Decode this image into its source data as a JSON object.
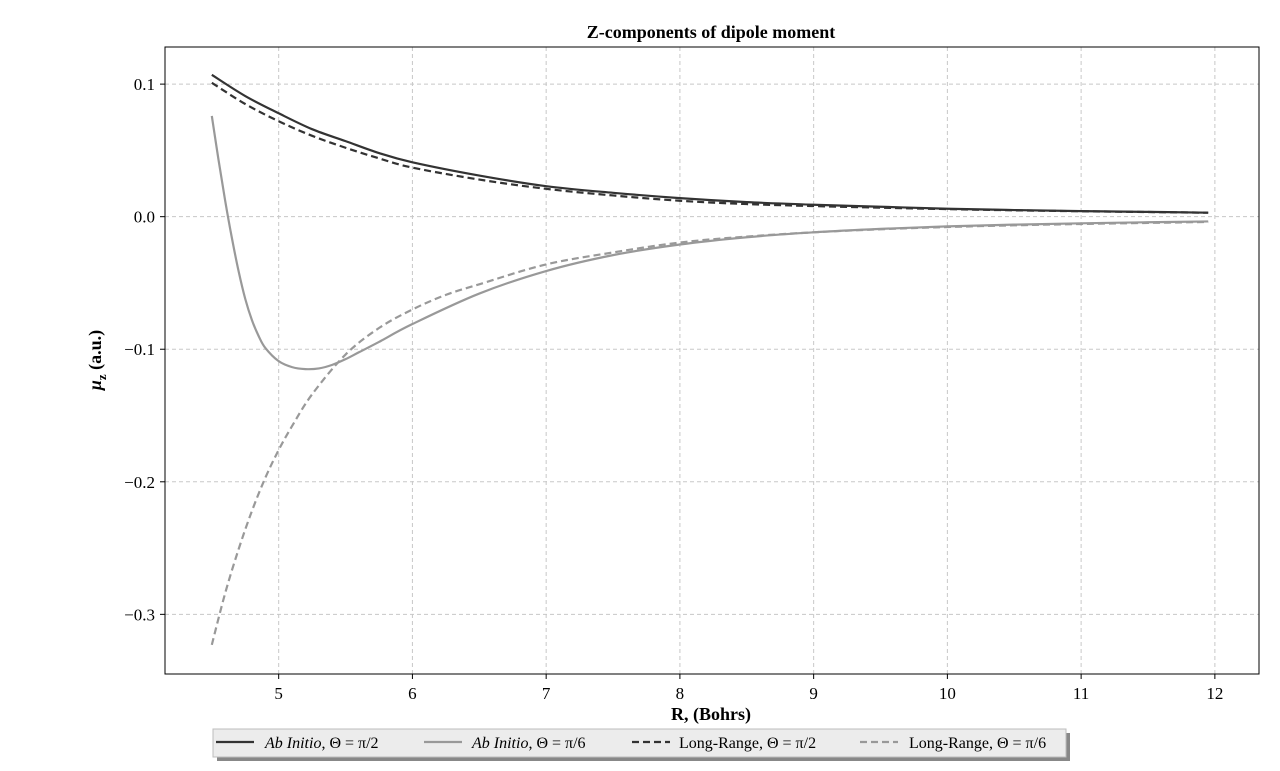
{
  "chart_data": {
    "type": "line",
    "title": "Z-components of dipole moment",
    "xlabel": "R, (Bohrs)",
    "ylabel_symbol": "μ",
    "ylabel_subscript": "z",
    "ylabel_unit": " (a.u.)",
    "xlim": [
      4.15,
      12.33
    ],
    "ylim": [
      -0.345,
      0.128
    ],
    "x_ticks": [
      5,
      6,
      7,
      8,
      9,
      10,
      11,
      12
    ],
    "y_ticks": [
      0.1,
      0.0,
      -0.1,
      -0.2,
      -0.3
    ],
    "x_tick_labels": [
      "5",
      "6",
      "7",
      "8",
      "9",
      "10",
      "11",
      "12"
    ],
    "y_tick_labels": [
      "0.1",
      "0.0",
      "−0.1",
      "−0.2",
      "−0.3"
    ],
    "grid": true,
    "legend_position": "bottom-center",
    "series": [
      {
        "name_italic": "Ab Initio",
        "name_rest": ", Θ = π/2",
        "color": "#333333",
        "dash": "solid",
        "x": [
          4.5,
          4.75,
          5.0,
          5.25,
          5.5,
          5.75,
          6.0,
          6.5,
          7.0,
          7.5,
          8.0,
          8.5,
          9.0,
          9.5,
          10.0,
          10.5,
          11.0,
          11.5,
          11.95
        ],
        "y": [
          0.107,
          0.091,
          0.078,
          0.066,
          0.057,
          0.048,
          0.041,
          0.031,
          0.023,
          0.018,
          0.014,
          0.011,
          0.009,
          0.0075,
          0.006,
          0.005,
          0.0042,
          0.0036,
          0.003
        ]
      },
      {
        "name_italic": "Ab Initio",
        "name_rest": ", Θ = π/6",
        "color": "#999999",
        "dash": "solid",
        "x": [
          4.5,
          4.55,
          4.6,
          4.65,
          4.7,
          4.75,
          4.8,
          4.85,
          4.9,
          5.0,
          5.1,
          5.2,
          5.3,
          5.4,
          5.5,
          5.6,
          5.75,
          6.0,
          6.5,
          7.0,
          7.5,
          8.0,
          8.5,
          9.0,
          9.5,
          10.0,
          10.5,
          11.0,
          11.5,
          11.95
        ],
        "y": [
          0.076,
          0.043,
          0.012,
          -0.016,
          -0.041,
          -0.062,
          -0.078,
          -0.09,
          -0.099,
          -0.109,
          -0.1135,
          -0.115,
          -0.1145,
          -0.1118,
          -0.1075,
          -0.1023,
          -0.0945,
          -0.081,
          -0.058,
          -0.041,
          -0.029,
          -0.021,
          -0.0155,
          -0.0118,
          -0.0092,
          -0.0073,
          -0.006,
          -0.005,
          -0.0042,
          -0.0036
        ]
      },
      {
        "name_italic": "",
        "name_rest": "Long-Range, Θ = π/2",
        "color": "#333333",
        "dash": "dashed",
        "x": [
          4.5,
          4.75,
          5.0,
          5.25,
          5.5,
          5.75,
          6.0,
          6.5,
          7.0,
          7.5,
          8.0,
          8.5,
          9.0,
          9.5,
          10.0,
          10.5,
          11.0,
          11.5,
          11.95
        ],
        "y": [
          0.101,
          0.085,
          0.072,
          0.061,
          0.052,
          0.044,
          0.037,
          0.028,
          0.021,
          0.016,
          0.012,
          0.0095,
          0.008,
          0.0068,
          0.0057,
          0.0048,
          0.0041,
          0.0035,
          0.003
        ]
      },
      {
        "name_italic": "",
        "name_rest": "Long-Range, Θ = π/6",
        "color": "#999999",
        "dash": "dashed",
        "x": [
          4.5,
          4.6,
          4.7,
          4.8,
          4.9,
          5.0,
          5.1,
          5.25,
          5.5,
          5.75,
          6.0,
          6.25,
          6.5,
          7.0,
          7.5,
          8.0,
          8.5,
          9.0,
          9.5,
          10.0,
          10.5,
          11.0,
          11.5,
          11.95
        ],
        "y": [
          -0.323,
          -0.284,
          -0.251,
          -0.222,
          -0.197,
          -0.176,
          -0.158,
          -0.134,
          -0.104,
          -0.084,
          -0.07,
          -0.059,
          -0.051,
          -0.036,
          -0.027,
          -0.0195,
          -0.015,
          -0.0118,
          -0.0095,
          -0.0078,
          -0.0065,
          -0.0055,
          -0.0047,
          -0.004
        ]
      }
    ]
  }
}
